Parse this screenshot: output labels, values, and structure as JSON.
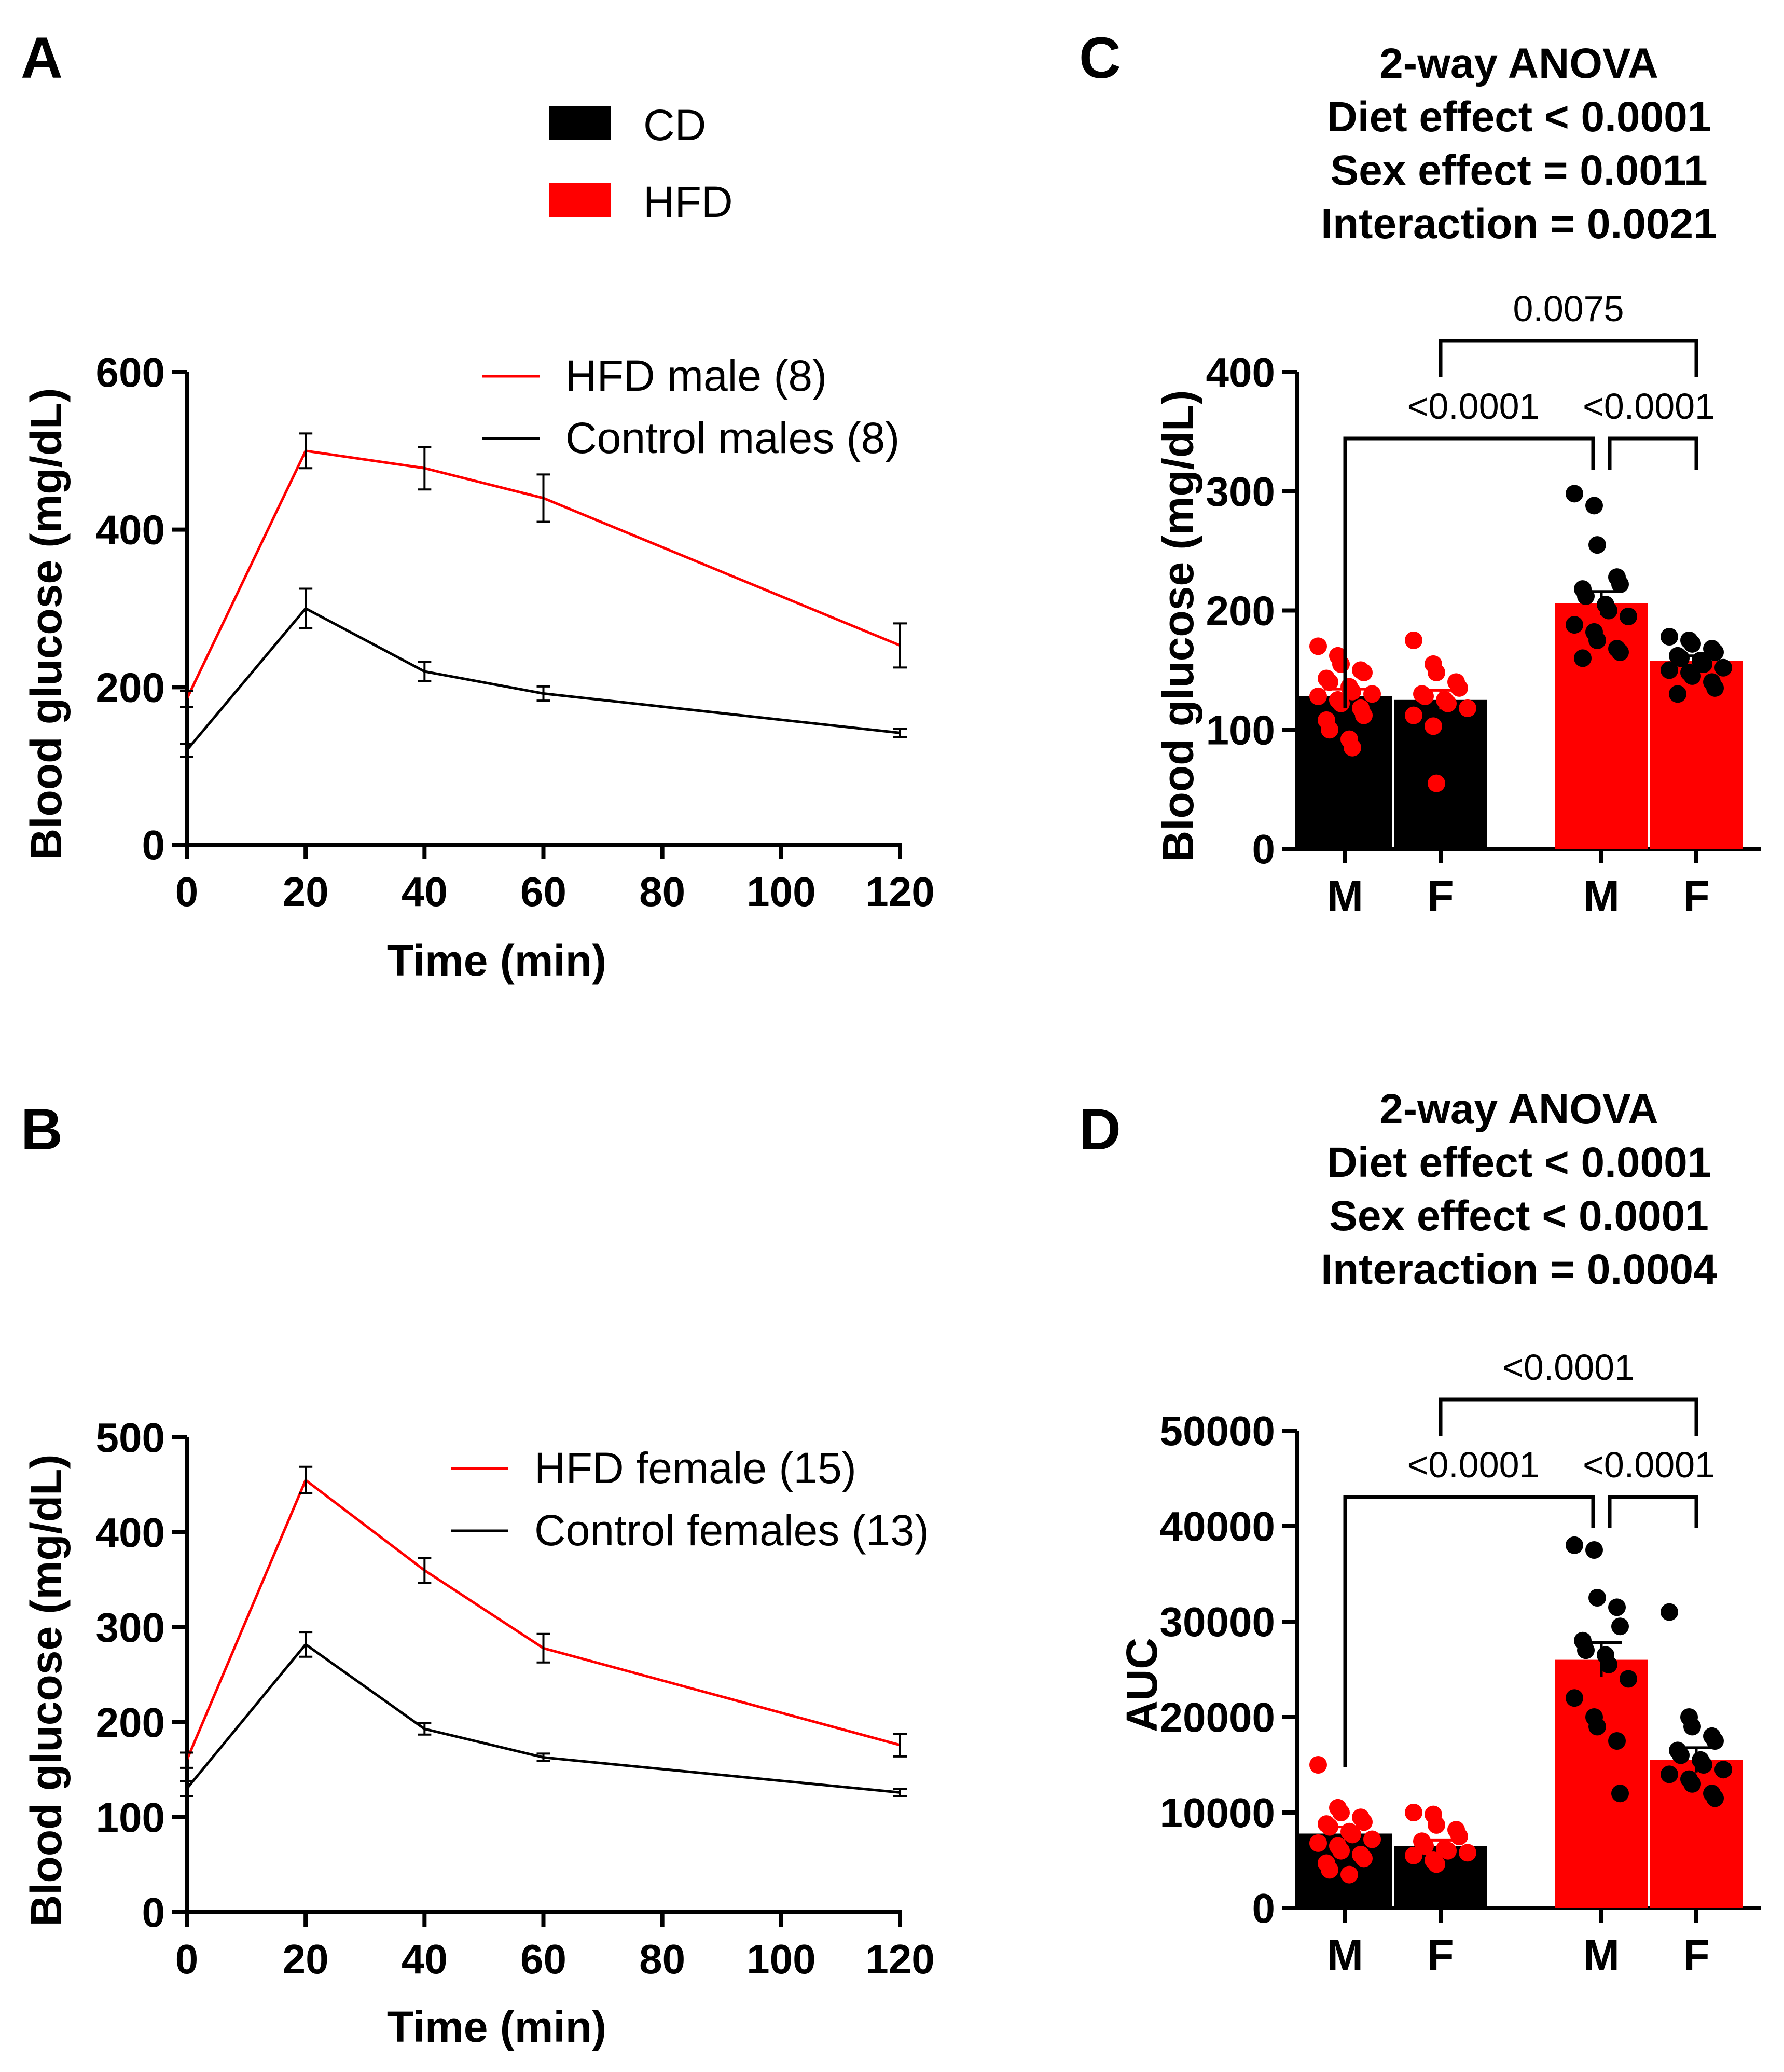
{
  "figure": {
    "legend": [
      {
        "label": "CD",
        "color": "#000000"
      },
      {
        "label": "HFD",
        "color": "#ff0000"
      }
    ]
  },
  "chart_data": [
    {
      "panel": "A",
      "type": "line",
      "x": [
        0,
        20,
        40,
        60,
        120
      ],
      "series": [
        {
          "name": "HFD male (8)",
          "color": "#ff0000",
          "values": [
            185,
            500,
            478,
            440,
            253
          ],
          "errors": [
            10,
            22,
            27,
            30,
            28
          ]
        },
        {
          "name": "Control males (8)",
          "color": "#000000",
          "values": [
            120,
            300,
            220,
            192,
            142
          ],
          "errors": [
            8,
            25,
            12,
            9,
            5
          ]
        }
      ],
      "xlabel": "Time (min)",
      "ylabel": "Blood glucose (mg/dL)",
      "xlim": [
        0,
        120
      ],
      "ylim": [
        0,
        600
      ],
      "xticks": [
        0,
        20,
        40,
        60,
        80,
        100,
        120
      ],
      "yticks": [
        0,
        200,
        400,
        600
      ],
      "legend_position": "top-right"
    },
    {
      "panel": "B",
      "type": "line",
      "x": [
        0,
        20,
        40,
        60,
        120
      ],
      "series": [
        {
          "name": "HFD female (15)",
          "color": "#ff0000",
          "values": [
            160,
            455,
            360,
            278,
            176
          ],
          "errors": [
            8,
            14,
            13,
            15,
            12
          ]
        },
        {
          "name": "Control females (13)",
          "color": "#000000",
          "values": [
            130,
            282,
            193,
            163,
            126
          ],
          "errors": [
            8,
            13,
            6,
            4,
            4
          ]
        }
      ],
      "xlabel": "Time (min)",
      "ylabel": "Blood glucose (mg/dL)",
      "xlim": [
        0,
        120
      ],
      "ylim": [
        0,
        500
      ],
      "xticks": [
        0,
        20,
        40,
        60,
        80,
        100,
        120
      ],
      "yticks": [
        0,
        100,
        200,
        300,
        400,
        500
      ],
      "legend_position": "top-right"
    },
    {
      "panel": "C",
      "type": "bar",
      "title_lines": [
        "2-way ANOVA",
        "Diet effect < 0.0001",
        "Sex effect = 0.0011",
        "Interaction = 0.0021"
      ],
      "categories": [
        "M",
        "F",
        "M",
        "F"
      ],
      "values": [
        128,
        125,
        206,
        158
      ],
      "errors": [
        6,
        8,
        10,
        4
      ],
      "bar_colors": [
        "#000000",
        "#000000",
        "#ff0000",
        "#ff0000"
      ],
      "dot_colors": [
        "#ff0000",
        "#ff0000",
        "#000000",
        "#000000"
      ],
      "points": [
        [
          170,
          162,
          155,
          150,
          148,
          143,
          140,
          136,
          132,
          130,
          128,
          125,
          122,
          118,
          112,
          108,
          100,
          92,
          85
        ],
        [
          175,
          155,
          148,
          140,
          135,
          130,
          128,
          125,
          122,
          118,
          112,
          103,
          55
        ],
        [
          298,
          288,
          255,
          228,
          222,
          218,
          212,
          205,
          200,
          195,
          188,
          182,
          175,
          168,
          165,
          160
        ],
        [
          178,
          175,
          172,
          168,
          165,
          162,
          160,
          158,
          155,
          152,
          150,
          148,
          145,
          140,
          135,
          130
        ]
      ],
      "ylabel": "Blood glucose (mg/dL)",
      "ylim": [
        0,
        400
      ],
      "yticks": [
        0,
        100,
        200,
        300,
        400
      ],
      "comparisons": [
        {
          "from": 1,
          "to": 3,
          "p": "0.0075",
          "level": 2
        },
        {
          "from": 0,
          "to": 2,
          "p": "<0.0001",
          "level": 1
        },
        {
          "from": 2,
          "to": 3,
          "p": "<0.0001",
          "level": 1
        }
      ]
    },
    {
      "panel": "D",
      "type": "bar",
      "title_lines": [
        "2-way ANOVA",
        "Diet effect < 0.0001",
        "Sex effect < 0.0001",
        "Interaction = 0.0004"
      ],
      "categories": [
        "M",
        "F",
        "M",
        "F"
      ],
      "values": [
        7800,
        6500,
        26000,
        15500
      ],
      "errors": [
        700,
        600,
        1800,
        1300
      ],
      "bar_colors": [
        "#000000",
        "#000000",
        "#ff0000",
        "#ff0000"
      ],
      "dot_colors": [
        "#ff0000",
        "#ff0000",
        "#000000",
        "#000000"
      ],
      "points": [
        [
          15000,
          10500,
          10000,
          9500,
          9000,
          8800,
          8500,
          8000,
          7700,
          7200,
          6800,
          6500,
          6000,
          5600,
          5200,
          4700,
          4000,
          3500
        ],
        [
          10000,
          9800,
          8700,
          8200,
          7500,
          7000,
          6500,
          6200,
          6000,
          5800,
          5500,
          5000,
          4600
        ],
        [
          38000,
          37500,
          32500,
          31500,
          29500,
          28000,
          27000,
          26500,
          25500,
          24000,
          22000,
          20000,
          19000,
          17500,
          12000
        ],
        [
          31000,
          20000,
          19000,
          18000,
          17500,
          16500,
          16000,
          15500,
          15000,
          14500,
          14000,
          13500,
          13000,
          12000,
          11500
        ]
      ],
      "ylabel": "AUC",
      "ylim": [
        0,
        50000
      ],
      "yticks": [
        0,
        10000,
        20000,
        30000,
        40000,
        50000
      ],
      "comparisons": [
        {
          "from": 1,
          "to": 3,
          "p": "<0.0001",
          "level": 2
        },
        {
          "from": 0,
          "to": 2,
          "p": "<0.0001",
          "level": 1
        },
        {
          "from": 2,
          "to": 3,
          "p": "<0.0001",
          "level": 1
        }
      ]
    }
  ]
}
